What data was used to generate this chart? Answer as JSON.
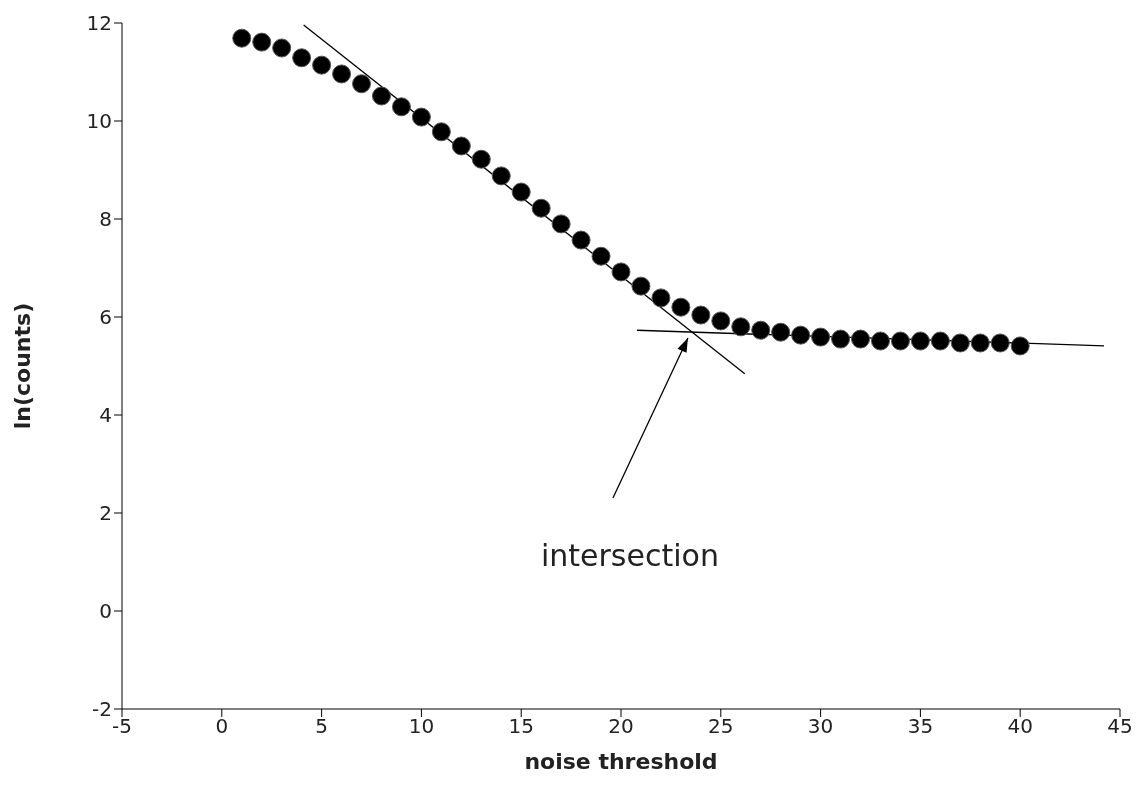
{
  "chart_data": {
    "type": "scatter",
    "xlabel": "noise threshold",
    "ylabel": "ln(counts)",
    "x": [
      1,
      2,
      3,
      4,
      5,
      6,
      7,
      8,
      9,
      10,
      11,
      12,
      13,
      14,
      15,
      16,
      17,
      18,
      19,
      20,
      21,
      22,
      23,
      24,
      25,
      26,
      27,
      28,
      29,
      30,
      31,
      32,
      33,
      34,
      35,
      36,
      37,
      38,
      39,
      40
    ],
    "series": [
      {
        "color": "#000000",
        "marker": "circle",
        "values": [
          11.69,
          11.61,
          11.49,
          11.29,
          11.14,
          10.96,
          10.76,
          10.51,
          10.29,
          10.08,
          9.78,
          9.49,
          9.22,
          8.88,
          8.55,
          8.22,
          7.9,
          7.57,
          7.24,
          6.92,
          6.63,
          6.39,
          6.2,
          6.04,
          5.92,
          5.8,
          5.73,
          5.69,
          5.63,
          5.59,
          5.55,
          5.55,
          5.51,
          5.51,
          5.51,
          5.51,
          5.47,
          5.47,
          5.47,
          5.41
        ]
      },
      {
        "type": "line",
        "color": "#000000",
        "marker": "none",
        "x": [
          4.1,
          26.2
        ],
        "values": [
          11.96,
          4.84
        ]
      },
      {
        "type": "line",
        "color": "#000000",
        "marker": "none",
        "x": [
          20.8,
          44.2
        ],
        "values": [
          5.73,
          5.41
        ]
      }
    ],
    "annotations": [
      "intersection"
    ],
    "xlim": [
      -5,
      45
    ],
    "xticks": [
      -5,
      0,
      5,
      10,
      15,
      20,
      25,
      30,
      35,
      40,
      45
    ],
    "ylim": [
      -2,
      12
    ],
    "yticks": [
      -2,
      0,
      2,
      4,
      6,
      8,
      10,
      12
    ],
    "grid": false,
    "legend": false
  }
}
